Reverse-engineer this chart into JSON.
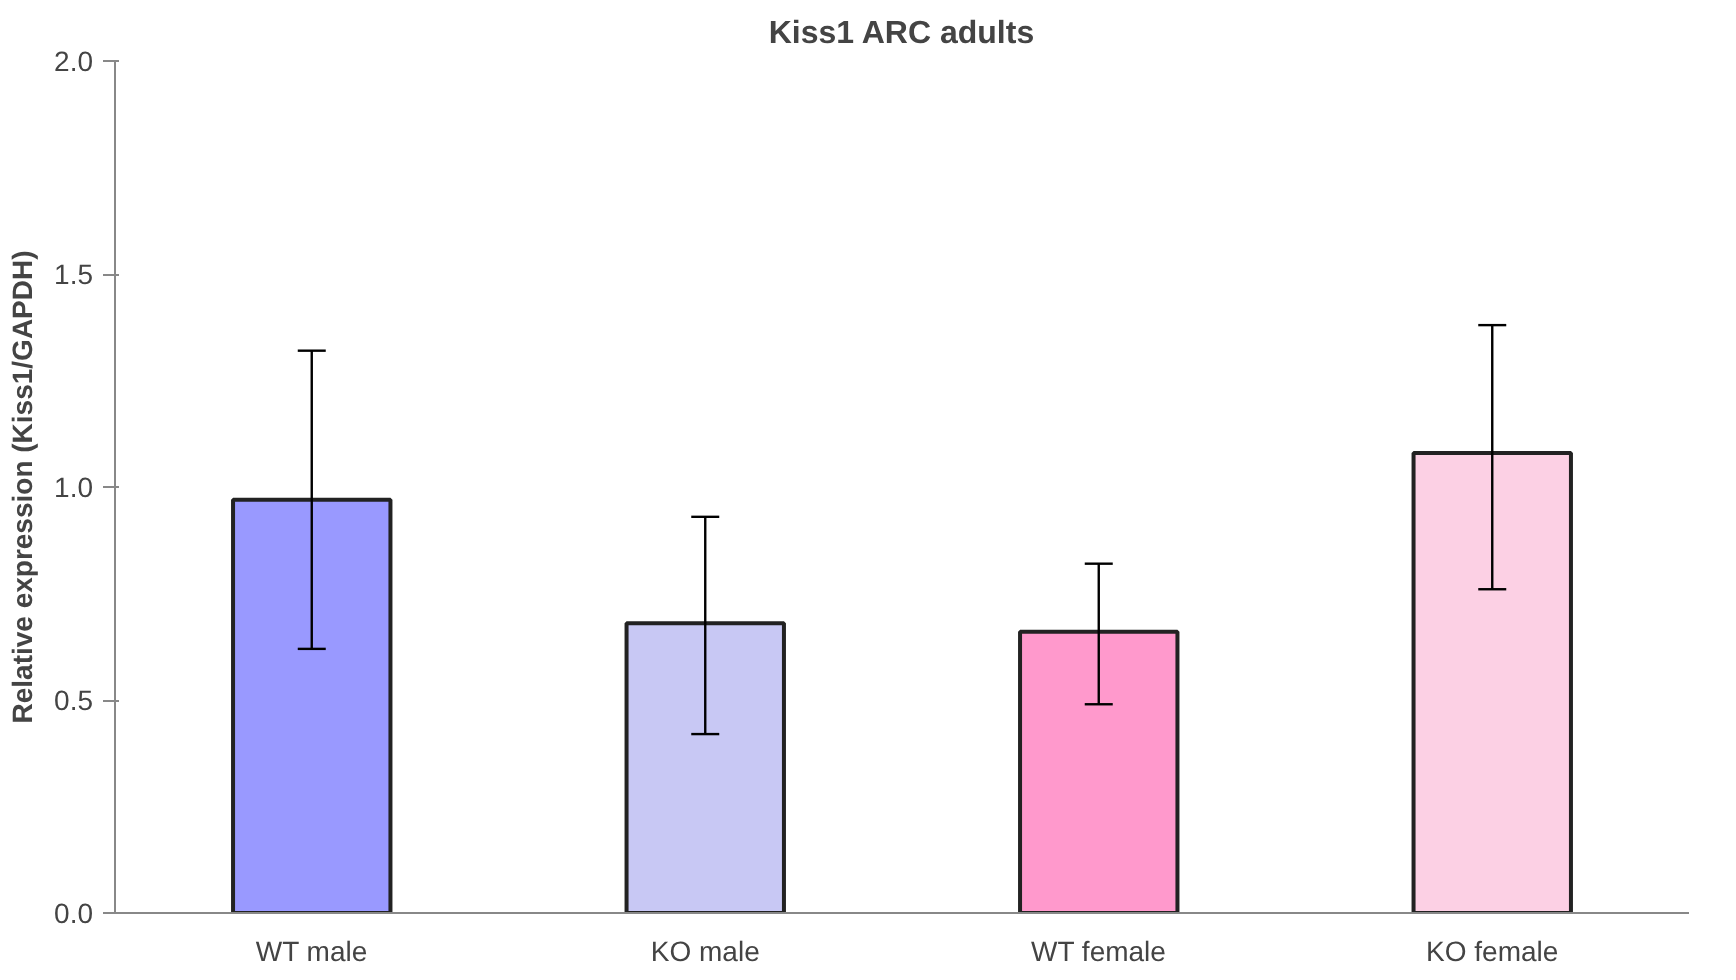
{
  "chart_data": {
    "type": "bar",
    "title": "Kiss1 ARC adults",
    "ylabel": "Relative expression (Kiss1/GAPDH)",
    "categories": [
      "WT male",
      "KO male",
      "WT female",
      "KO female"
    ],
    "values": [
      0.97,
      0.68,
      0.66,
      1.08
    ],
    "errors": [
      [
        0.62,
        1.32
      ],
      [
        0.42,
        0.93
      ],
      [
        0.49,
        0.82
      ],
      [
        0.76,
        1.38
      ]
    ],
    "colors": [
      "#9999ff",
      "#c8c8f4",
      "#ff99cc",
      "#fcd0e4"
    ],
    "ylim": [
      0,
      2.0
    ],
    "yticks": [
      {
        "value": 0,
        "label": "0.0"
      },
      {
        "value": 0.5,
        "label": "0.5"
      },
      {
        "value": 1,
        "label": "1.0"
      },
      {
        "value": 1.5,
        "label": "1.5"
      },
      {
        "value": 2,
        "label": "2.0"
      }
    ],
    "grid": false
  }
}
